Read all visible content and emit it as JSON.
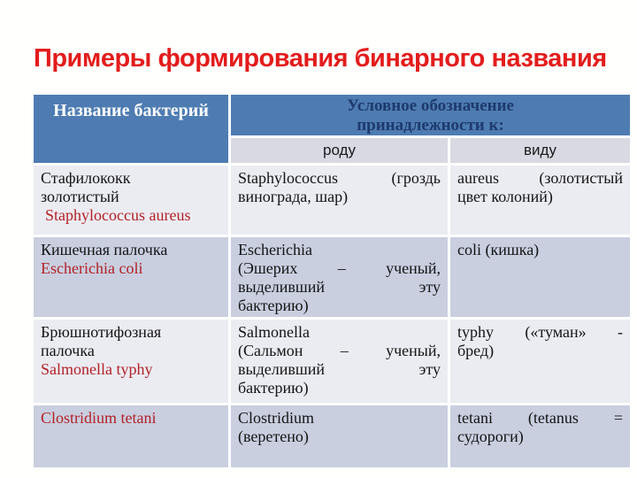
{
  "slide": {
    "title": "Примеры формирования бинарного названия",
    "colors": {
      "title_red": "#e31c1c",
      "header_blue": "#4e7cb2",
      "header_navy_text": "#1e3a6d",
      "subheader_bg": "#d8d9e2",
      "row_light": "#ebecf2",
      "row_dark": "#c9cfdf",
      "latin_red": "#b22127"
    }
  },
  "table": {
    "header": {
      "col_bacteria": "Название бактерий",
      "col_designation_line1": "Условное обозначение",
      "col_designation_line2": "принадлежности к:",
      "sub_genus": "роду",
      "sub_species": "виду"
    },
    "rows": [
      {
        "ru": [
          "Стафилококк",
          "золотистый"
        ],
        "lat": "Staphylococcus aureus",
        "lat_indent": true,
        "genus": [
          [
            "Staphylococcus",
            "(гроздь"
          ],
          [
            "винограда, шар)"
          ]
        ],
        "species": [
          [
            "aureus",
            "(золотистый"
          ],
          [
            "цвет колоний)"
          ]
        ]
      },
      {
        "ru": [
          "Кишечная палочка"
        ],
        "lat": "Escherichia coli",
        "lat_indent": false,
        "genus": [
          [
            "Escherichia"
          ],
          [
            "(Эшерих",
            "–",
            "ученый,"
          ],
          [
            "выделивший",
            "эту"
          ],
          [
            "бактерию)"
          ]
        ],
        "species": [
          [
            "coli (кишка)"
          ]
        ]
      },
      {
        "ru": [
          "Брюшнотифозная",
          "палочка"
        ],
        "lat": "Salmonella typhy",
        "lat_indent": false,
        "genus": [
          [
            "Salmonella"
          ],
          [
            "(Сальмон",
            "–",
            "ученый,"
          ],
          [
            "выделивший",
            "эту"
          ],
          [
            "бактерию)"
          ]
        ],
        "species": [
          [
            "typhy",
            "(«туман»",
            "-"
          ],
          [
            "бред)"
          ]
        ]
      },
      {
        "ru": [],
        "lat": "Clostridium tetani",
        "lat_indent": false,
        "genus": [
          [
            "Clostridium"
          ],
          [
            "(веретено)"
          ]
        ],
        "species": [
          [
            "tetani",
            "(tetanus",
            "="
          ],
          [
            "судороги)"
          ]
        ]
      }
    ]
  }
}
